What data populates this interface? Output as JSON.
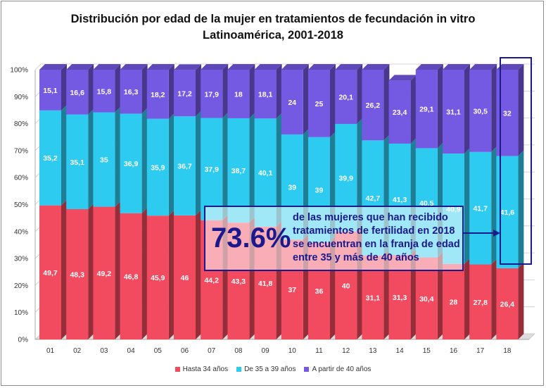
{
  "chart_data": {
    "type": "bar",
    "stacked": true,
    "title": "Distribución por edad de la mujer en tratamientos de fecundación  in vitro",
    "subtitle": "Latinoamérica, 2001-2018",
    "xlabel": "",
    "ylabel": "",
    "ylim": [
      0,
      100
    ],
    "yticks": [
      "0%",
      "10%",
      "20%",
      "30%",
      "40%",
      "50%",
      "60%",
      "70%",
      "80%",
      "90%",
      "100%"
    ],
    "categories": [
      "01",
      "02",
      "03",
      "04",
      "05",
      "06",
      "07",
      "08",
      "09",
      "10",
      "11",
      "12",
      "13",
      "14",
      "15",
      "16",
      "17",
      "18"
    ],
    "series": [
      {
        "name": "Hasta 34 años",
        "color": "#f24a5e",
        "values": [
          49.7,
          48.3,
          49.2,
          46.8,
          45.9,
          46,
          44.2,
          43.3,
          41.8,
          37,
          36,
          40,
          31.1,
          31.3,
          30.4,
          28,
          27.8,
          26.4
        ],
        "labels": [
          "49,7",
          "48,3",
          "49,2",
          "46,8",
          "45,9",
          "46",
          "44,2",
          "43,3",
          "41,8",
          "37",
          "36",
          "40",
          "31,1",
          "31,3",
          "30,4",
          "28",
          "27,8",
          "26,4"
        ]
      },
      {
        "name": "De 35 a 39 años",
        "color": "#2ecbf0",
        "values": [
          35.2,
          35.1,
          35,
          36.9,
          35.9,
          36.7,
          37.9,
          38.7,
          40.1,
          39,
          39,
          39.9,
          42.7,
          41.3,
          40.5,
          40.9,
          41.7,
          41.6
        ],
        "labels": [
          "35,2",
          "35,1",
          "35",
          "36,9",
          "35,9",
          "36,7",
          "37,9",
          "38,7",
          "40,1",
          "39",
          "39",
          "39,9",
          "42,7",
          "41,3",
          "40,5",
          "40,9",
          "41,7",
          "41,6"
        ]
      },
      {
        "name": "A partir de 40 años",
        "color": "#7459e3",
        "values": [
          15.1,
          16.6,
          15.8,
          16.3,
          18.2,
          17.2,
          17.9,
          18,
          18.1,
          24,
          25,
          20.1,
          26.2,
          23.4,
          29.1,
          31.1,
          30.5,
          32
        ],
        "labels": [
          "15,1",
          "16,6",
          "15,8",
          "16,3",
          "18,2",
          "17,2",
          "17,9",
          "18",
          "18,1",
          "24",
          "25",
          "20,1",
          "26,2",
          "23,4",
          "29,1",
          "31,1",
          "30,5",
          "32"
        ]
      }
    ],
    "annotation": {
      "value": "73.6%",
      "text": "de las mujeres que han recibido tratamientos de fertilidad  en 2018 se encuentran en la franja de edad entre 35 y más de 40 años",
      "highlighted_category": "18"
    },
    "legend": {
      "position": "bottom"
    }
  }
}
